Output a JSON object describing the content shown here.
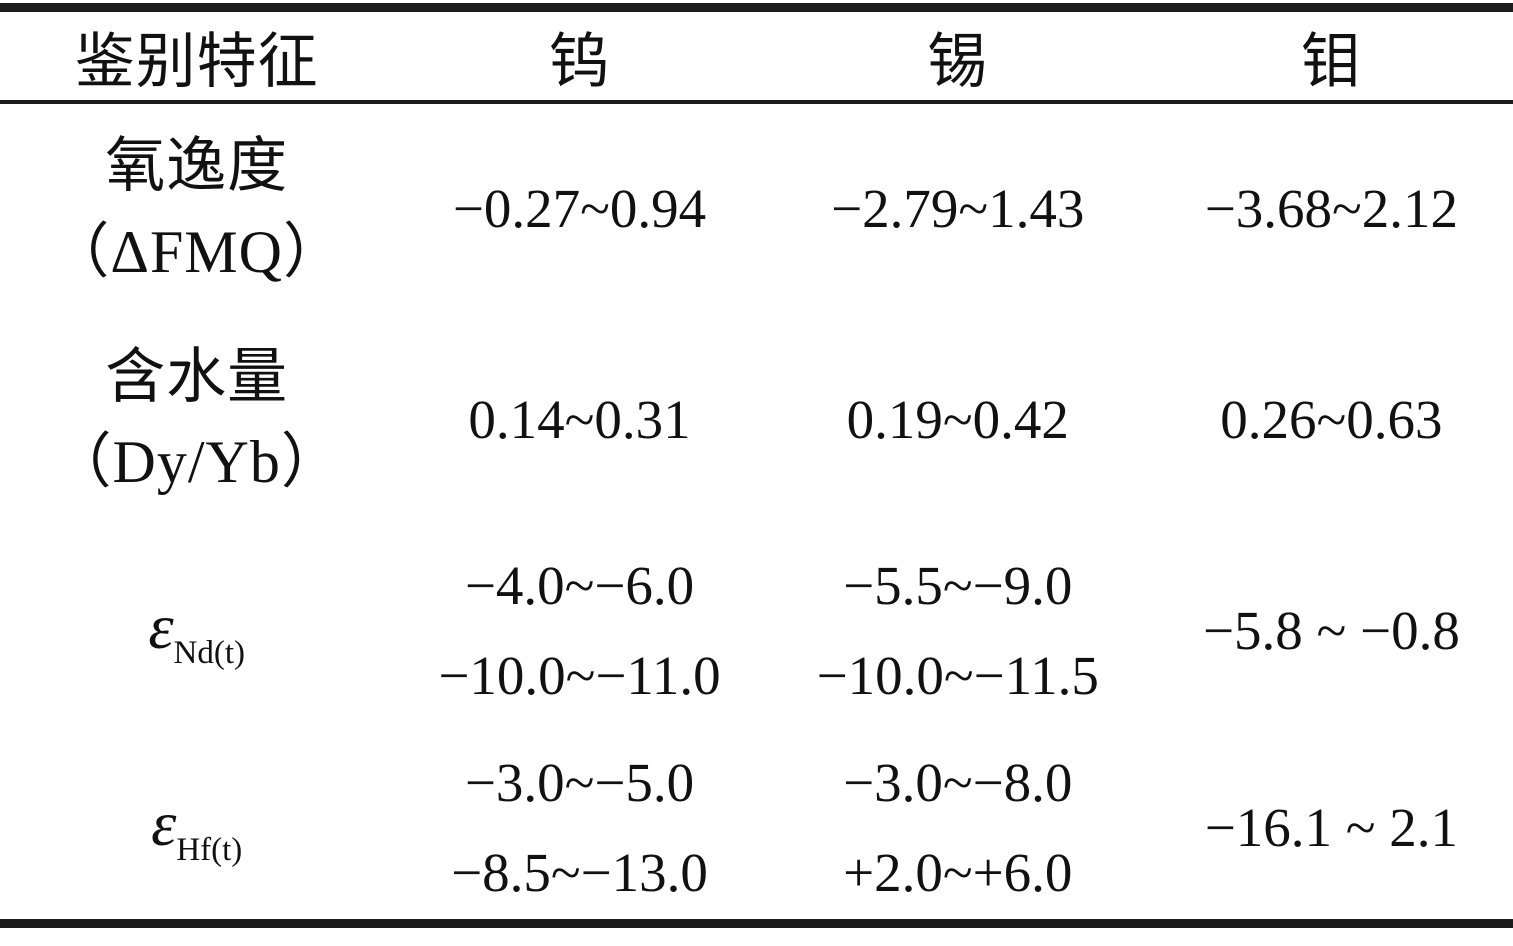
{
  "table": {
    "columns": [
      "鉴别特征",
      "钨",
      "锡",
      "钼"
    ],
    "rows": [
      {
        "label": [
          "氧逸度",
          "（ΔFMQ）"
        ],
        "cells": [
          [
            "−0.27~0.94"
          ],
          [
            "−2.79~1.43"
          ],
          [
            "−3.68~2.12"
          ]
        ]
      },
      {
        "label": [
          "含水量",
          "（Dy/Yb）"
        ],
        "cells": [
          [
            "0.14~0.31"
          ],
          [
            "0.19~0.42"
          ],
          [
            "0.26~0.63"
          ]
        ]
      },
      {
        "label": {
          "symbol": "ε",
          "subscript": "Nd(t)"
        },
        "cells": [
          [
            "−4.0~−6.0",
            "−10.0~−11.0"
          ],
          [
            "−5.5~−9.0",
            "−10.0~−11.5"
          ],
          [
            "−5.8 ~ −0.8"
          ]
        ]
      },
      {
        "label": {
          "symbol": "ε",
          "subscript": "Hf(t)"
        },
        "cells": [
          [
            "−3.0~−5.0",
            "−8.5~−13.0"
          ],
          [
            "−3.0~−8.0",
            "+2.0~+6.0"
          ],
          [
            "−16.1 ~ 2.1"
          ]
        ]
      }
    ],
    "colors": {
      "text": "#111111",
      "rule": "#1c1c1c",
      "background": "#ffffff"
    }
  }
}
